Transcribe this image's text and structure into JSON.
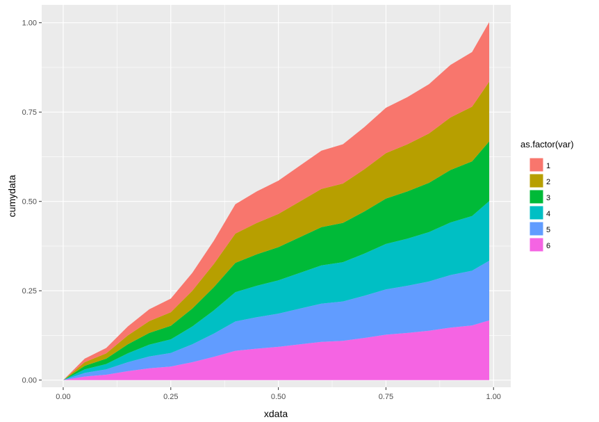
{
  "chart_data": {
    "type": "area",
    "stacked": true,
    "xlabel": "xdata",
    "ylabel": "cumydata",
    "xlim": [
      -0.05,
      1.04
    ],
    "ylim": [
      -0.02,
      1.05
    ],
    "x_ticks": [
      0.0,
      0.25,
      0.5,
      0.75,
      1.0
    ],
    "x_tick_labels": [
      "0.00",
      "0.25",
      "0.50",
      "0.75",
      "1.00"
    ],
    "y_ticks": [
      0.0,
      0.25,
      0.5,
      0.75,
      1.0
    ],
    "y_tick_labels": [
      "0.00",
      "0.25",
      "0.50",
      "0.75",
      "1.00"
    ],
    "grid": true,
    "legend": {
      "title": "as.factor(var)",
      "position": "right"
    },
    "x": [
      0.0,
      0.05,
      0.1,
      0.15,
      0.2,
      0.25,
      0.3,
      0.35,
      0.4,
      0.45,
      0.5,
      0.55,
      0.6,
      0.65,
      0.7,
      0.75,
      0.8,
      0.85,
      0.9,
      0.95,
      0.99
    ],
    "cumulative_top": [
      0.0,
      0.06,
      0.09,
      0.15,
      0.2,
      0.23,
      0.3,
      0.39,
      0.49,
      0.53,
      0.56,
      0.6,
      0.64,
      0.66,
      0.71,
      0.76,
      0.79,
      0.83,
      0.88,
      0.92,
      1.0
    ],
    "series": [
      {
        "name": "1",
        "color": "#F8766D",
        "values": [
          0.0,
          0.01,
          0.015,
          0.025,
          0.033,
          0.038,
          0.05,
          0.065,
          0.082,
          0.088,
          0.093,
          0.1,
          0.107,
          0.11,
          0.118,
          0.127,
          0.132,
          0.138,
          0.147,
          0.153,
          0.167
        ]
      },
      {
        "name": "2",
        "color": "#B79F00",
        "values": [
          0.0,
          0.01,
          0.015,
          0.025,
          0.033,
          0.038,
          0.05,
          0.065,
          0.082,
          0.088,
          0.093,
          0.1,
          0.107,
          0.11,
          0.118,
          0.127,
          0.132,
          0.138,
          0.147,
          0.153,
          0.167
        ]
      },
      {
        "name": "3",
        "color": "#00BA38",
        "values": [
          0.0,
          0.01,
          0.015,
          0.025,
          0.033,
          0.038,
          0.05,
          0.065,
          0.082,
          0.088,
          0.093,
          0.1,
          0.107,
          0.11,
          0.118,
          0.127,
          0.132,
          0.138,
          0.147,
          0.153,
          0.167
        ]
      },
      {
        "name": "4",
        "color": "#00BFC4",
        "values": [
          0.0,
          0.01,
          0.015,
          0.025,
          0.033,
          0.038,
          0.05,
          0.065,
          0.082,
          0.088,
          0.093,
          0.1,
          0.107,
          0.11,
          0.118,
          0.127,
          0.132,
          0.138,
          0.147,
          0.153,
          0.167
        ]
      },
      {
        "name": "5",
        "color": "#619CFF",
        "values": [
          0.0,
          0.01,
          0.015,
          0.025,
          0.033,
          0.038,
          0.05,
          0.065,
          0.082,
          0.088,
          0.093,
          0.1,
          0.107,
          0.11,
          0.118,
          0.127,
          0.132,
          0.138,
          0.147,
          0.153,
          0.167
        ]
      },
      {
        "name": "6",
        "color": "#F564E3",
        "values": [
          0.0,
          0.01,
          0.015,
          0.025,
          0.033,
          0.038,
          0.05,
          0.065,
          0.082,
          0.088,
          0.093,
          0.1,
          0.107,
          0.11,
          0.118,
          0.127,
          0.132,
          0.138,
          0.147,
          0.153,
          0.167
        ]
      }
    ]
  },
  "colors": {
    "panel_background": "#EBEBEB",
    "grid": "#FFFFFF",
    "tick_text": "#4D4D4D"
  }
}
